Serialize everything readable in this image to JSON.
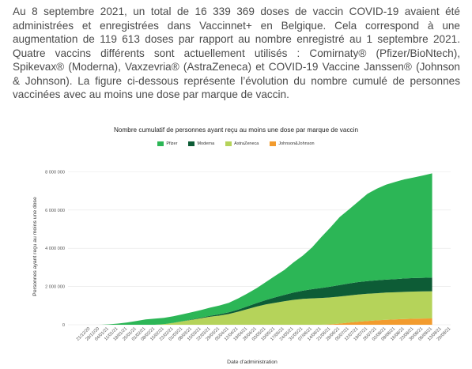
{
  "intro_text": "Au 8 septembre 2021, un total de 16 339 369 doses de vaccin COVID-19 avaient été administrées et enregistrées dans Vaccinnet+ en Belgique. Cela correspond à une augmentation de 119 613 doses par rapport au nombre enregistré au 1 septembre 2021. Quatre vaccins différents sont actuellement utilisés : Comirnaty® (Pfizer/BioNtech), Spikevax® (Moderna), Vaxzevria® (AstraZeneca) et COVID-19 Vaccine Janssen® (Johnson & Johnson). La figure ci-dessous représente l’évolution du nombre cumulé de personnes vaccinées avec au moins une dose par marque de vaccin.",
  "chart_data": {
    "type": "area",
    "stacked": true,
    "title": "Nombre cumulatif de personnes ayant reçu au moins une dose par marque de vaccin",
    "xlabel": "Date d'administration",
    "ylabel": "Personnes ayant reçu au moins une dose",
    "ylim": [
      0,
      8800000
    ],
    "yticks": [
      0,
      2000000,
      4000000,
      6000000,
      8000000
    ],
    "ytick_labels": [
      "0",
      "2 000 000",
      "4 000 000",
      "6 000 000",
      "8 000 000"
    ],
    "legend_position": "top-center",
    "categories": [
      "21/12/20",
      "28/12/20",
      "04/01/21",
      "11/01/21",
      "18/01/21",
      "25/01/21",
      "01/02/21",
      "08/02/21",
      "15/02/21",
      "22/02/21",
      "01/03/21",
      "08/03/21",
      "15/03/21",
      "22/03/21",
      "29/03/21",
      "05/04/21",
      "12/04/21",
      "19/04/21",
      "26/04/21",
      "03/05/21",
      "10/05/21",
      "17/05/21",
      "24/05/21",
      "31/05/21",
      "07/06/21",
      "14/06/21",
      "21/06/21",
      "28/06/21",
      "05/07/21",
      "12/07/21",
      "19/07/21",
      "26/07/21",
      "02/08/21",
      "09/08/21",
      "16/08/21",
      "23/08/21",
      "30/08/21",
      "06/09/21",
      "13/09/21",
      "20/09/21"
    ],
    "series": [
      {
        "name": "Johnson&Johnson",
        "color": "#f29b2e",
        "values": [
          0,
          0,
          0,
          0,
          0,
          0,
          0,
          0,
          0,
          0,
          0,
          0,
          0,
          0,
          0,
          0,
          0,
          0,
          0,
          0,
          0,
          0,
          0,
          0,
          0,
          2000,
          20000,
          60000,
          110000,
          160000,
          200000,
          230000,
          260000,
          280000,
          300000,
          315000,
          325000,
          330000,
          null,
          null
        ]
      },
      {
        "name": "AstraZeneca",
        "color": "#b5d35a",
        "values": [
          0,
          0,
          0,
          0,
          0,
          0,
          0,
          0,
          30000,
          100000,
          180000,
          260000,
          340000,
          420000,
          480000,
          560000,
          680000,
          820000,
          950000,
          1060000,
          1150000,
          1230000,
          1300000,
          1350000,
          1380000,
          1400000,
          1410000,
          1415000,
          1420000,
          1420000,
          1420000,
          1420000,
          1420000,
          1420000,
          1420000,
          1420000,
          1420000,
          1420000,
          null,
          null
        ]
      },
      {
        "name": "Moderna",
        "color": "#0d5c36",
        "values": [
          0,
          0,
          0,
          0,
          0,
          0,
          0,
          0,
          0,
          2000,
          5000,
          15000,
          30000,
          50000,
          70000,
          90000,
          110000,
          140000,
          180000,
          230000,
          280000,
          330000,
          380000,
          430000,
          480000,
          520000,
          560000,
          600000,
          630000,
          650000,
          660000,
          670000,
          680000,
          690000,
          700000,
          705000,
          710000,
          715000,
          null,
          null
        ]
      },
      {
        "name": "Pfizer",
        "color": "#2cb656",
        "values": [
          0,
          2000,
          20000,
          60000,
          120000,
          200000,
          280000,
          320000,
          330000,
          340000,
          360000,
          380000,
          400000,
          430000,
          460000,
          500000,
          580000,
          670000,
          780000,
          940000,
          1120000,
          1300000,
          1580000,
          1830000,
          2180000,
          2660000,
          3100000,
          3560000,
          3870000,
          4210000,
          4570000,
          4790000,
          4960000,
          5080000,
          5180000,
          5260000,
          5350000,
          5450000,
          null,
          null
        ]
      }
    ]
  }
}
